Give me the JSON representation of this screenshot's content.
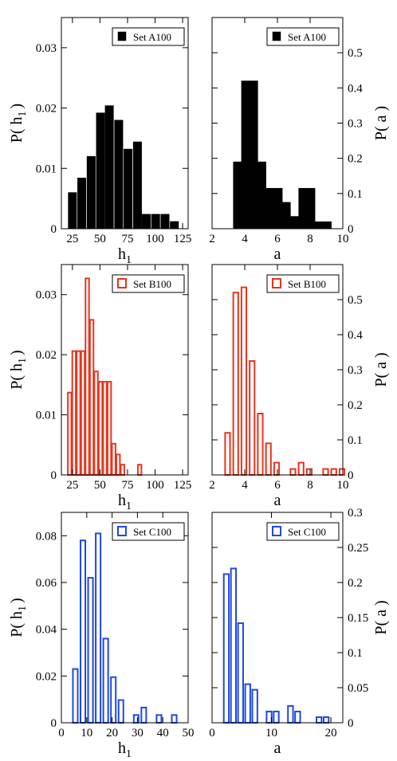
{
  "chart_data": [
    {
      "type": "bar",
      "panel": "top-left",
      "style": "filled",
      "color": "#000000",
      "legend": "Set A100",
      "legend_position": "top-right",
      "xlabel": "h",
      "xlabel_sub": "1",
      "ylabel": "P( h",
      "ylabel_sub": "1",
      "ylabel_end": ")",
      "y_axis_side": "left",
      "xlim": [
        15,
        130
      ],
      "ylim": [
        0,
        0.035
      ],
      "xticks": [
        25,
        50,
        75,
        100,
        125
      ],
      "xtick_labels": [
        "25",
        "50",
        "75",
        "100",
        "125"
      ],
      "yticks": [
        0,
        0.01,
        0.02,
        0.03
      ],
      "ytick_labels": [
        "0",
        "0.01",
        "0.02",
        "0.03"
      ],
      "bin_width": 7.6,
      "x": [
        25,
        33.5,
        42,
        50.5,
        58.5,
        67,
        75.5,
        84,
        92,
        100.5,
        109,
        117.5
      ],
      "values": [
        0.006,
        0.0084,
        0.012,
        0.0192,
        0.0204,
        0.018,
        0.0132,
        0.0144,
        0.0024,
        0.0024,
        0.0024,
        0.0012
      ]
    },
    {
      "type": "bar",
      "panel": "top-right",
      "style": "filled",
      "color": "#000000",
      "legend": "Set A100",
      "legend_position": "top-right",
      "xlabel": "a",
      "ylabel": "P( a )",
      "y_axis_side": "right",
      "xlim": [
        2,
        10
      ],
      "ylim": [
        0,
        0.6
      ],
      "xticks": [
        2,
        4,
        6,
        8,
        10
      ],
      "xtick_labels": [
        "2",
        "4",
        "6",
        "8",
        "10"
      ],
      "yticks": [
        0,
        0.1,
        0.2,
        0.3,
        0.4,
        0.5
      ],
      "ytick_labels": [
        "0",
        "0.1",
        "0.2",
        "0.3",
        "0.4",
        "0.5"
      ],
      "bin_width": 0.5,
      "x": [
        3.55,
        4.05,
        4.55,
        5.05,
        5.55,
        6.05,
        6.55,
        7.05,
        7.55,
        8.05,
        8.55,
        9.05
      ],
      "values": [
        0.19,
        0.42,
        0.42,
        0.19,
        0.115,
        0.115,
        0.075,
        0.035,
        0.115,
        0.115,
        0.02,
        0.02
      ]
    },
    {
      "type": "bar",
      "panel": "middle-left",
      "style": "outline",
      "color": "#e8341c",
      "legend": "Set B100",
      "legend_position": "top-right",
      "xlabel": "h",
      "xlabel_sub": "1",
      "ylabel": "P( h",
      "ylabel_sub": "1",
      "ylabel_end": ")",
      "y_axis_side": "left",
      "xlim": [
        15,
        130
      ],
      "ylim": [
        0,
        0.035
      ],
      "xticks": [
        25,
        50,
        75,
        100,
        125
      ],
      "xtick_labels": [
        "25",
        "50",
        "75",
        "100",
        "125"
      ],
      "yticks": [
        0,
        0.01,
        0.02,
        0.03
      ],
      "ytick_labels": [
        "0",
        "0.01",
        "0.02",
        "0.03"
      ],
      "bin_width": 3.2,
      "x": [
        22.5,
        26.5,
        30.5,
        34.5,
        38.5,
        42.5,
        46.5,
        50.5,
        54.5,
        58.5,
        62.5,
        66.5,
        70.5,
        86
      ],
      "values": [
        0.0137,
        0.0206,
        0.0206,
        0.0206,
        0.0327,
        0.0258,
        0.0172,
        0.0155,
        0.0155,
        0.0155,
        0.0052,
        0.0034,
        0.0017,
        0.0017
      ]
    },
    {
      "type": "bar",
      "panel": "middle-right",
      "style": "outline",
      "color": "#e8341c",
      "legend": "Set B100",
      "legend_position": "top-right",
      "xlabel": "a",
      "ylabel": "P( a )",
      "y_axis_side": "right",
      "xlim": [
        2,
        10
      ],
      "ylim": [
        0,
        0.6
      ],
      "xticks": [
        2,
        4,
        6,
        8,
        10
      ],
      "xtick_labels": [
        "2",
        "4",
        "6",
        "8",
        "10"
      ],
      "yticks": [
        0,
        0.1,
        0.2,
        0.3,
        0.4,
        0.5
      ],
      "ytick_labels": [
        "0",
        "0.1",
        "0.2",
        "0.3",
        "0.4",
        "0.5"
      ],
      "bin_width": 0.3,
      "x": [
        2.95,
        3.45,
        3.95,
        4.45,
        4.95,
        5.45,
        5.95,
        6.95,
        7.45,
        7.95,
        8.95,
        9.45,
        9.95
      ],
      "values": [
        0.12,
        0.52,
        0.535,
        0.325,
        0.175,
        0.09,
        0.035,
        0.017,
        0.035,
        0.017,
        0.017,
        0.017,
        0.017
      ]
    },
    {
      "type": "bar",
      "panel": "bottom-left",
      "style": "outline",
      "color": "#1f48e0",
      "legend": "Set C100",
      "legend_position": "top-right",
      "xlabel": "h",
      "xlabel_sub": "1",
      "ylabel": "P( h",
      "ylabel_sub": "1",
      "ylabel_end": ")",
      "y_axis_side": "left",
      "xlim": [
        0,
        50
      ],
      "ylim": [
        0,
        0.09
      ],
      "xticks": [
        0,
        10,
        20,
        30,
        40,
        50
      ],
      "xtick_labels": [
        "0",
        "10",
        "20",
        "30",
        "40",
        "50"
      ],
      "yticks": [
        0,
        0.02,
        0.04,
        0.06,
        0.08
      ],
      "ytick_labels": [
        "0",
        "0.02",
        "0.04",
        "0.06",
        "0.08"
      ],
      "bin_width": 1.9,
      "x": [
        5.5,
        8.5,
        11.5,
        14.5,
        17.5,
        20.5,
        23.5,
        29.5,
        32.5,
        38.5,
        44.5
      ],
      "values": [
        0.023,
        0.078,
        0.062,
        0.081,
        0.036,
        0.0195,
        0.0097,
        0.0033,
        0.0065,
        0.0033,
        0.0033
      ]
    },
    {
      "type": "bar",
      "panel": "bottom-right",
      "style": "outline",
      "color": "#1f48e0",
      "legend": "Set C100",
      "legend_position": "top-right",
      "xlabel": "a",
      "ylabel": "P( a )",
      "y_axis_side": "right",
      "xlim": [
        0,
        22
      ],
      "ylim": [
        0,
        0.3
      ],
      "xticks": [
        0,
        10,
        20
      ],
      "xtick_labels": [
        "0",
        "10",
        "20"
      ],
      "yticks": [
        0,
        0.05,
        0.1,
        0.15,
        0.2,
        0.25,
        0.3
      ],
      "ytick_labels": [
        "0",
        "0.05",
        "0.1",
        "0.15",
        "0.2",
        "0.25",
        "0.3"
      ],
      "bin_width": 0.85,
      "x": [
        2.4,
        3.6,
        4.8,
        6.0,
        7.2,
        9.6,
        10.8,
        13.2,
        14.4,
        18.0,
        19.2
      ],
      "values": [
        0.212,
        0.22,
        0.142,
        0.055,
        0.047,
        0.016,
        0.016,
        0.024,
        0.016,
        0.008,
        0.008
      ]
    }
  ]
}
